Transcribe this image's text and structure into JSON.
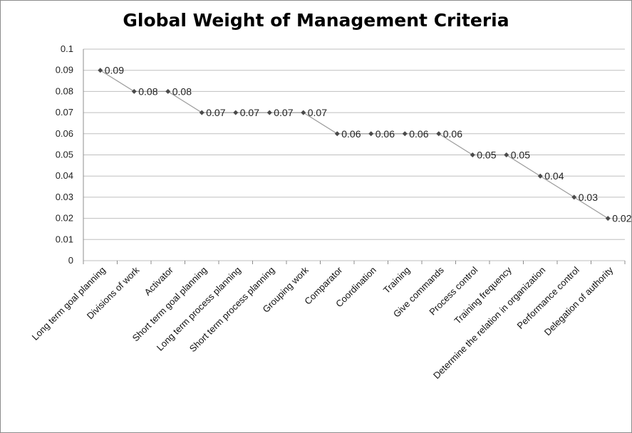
{
  "chart_data": {
    "type": "line",
    "title": "Global Weight of Management Criteria",
    "categories": [
      "Long term goal planning",
      "Divisions of work",
      "Activator",
      "Short term goal planning",
      "Long term process planning",
      "Short term process planning",
      "Grouping work",
      "Comparator",
      "Coordination",
      "Training",
      "Give commands",
      "Process control",
      "Training frequency",
      "Determine the relation in organization",
      "Performance control",
      "Delegation of authority"
    ],
    "values": [
      0.09,
      0.08,
      0.08,
      0.07,
      0.07,
      0.07,
      0.07,
      0.06,
      0.06,
      0.06,
      0.06,
      0.05,
      0.05,
      0.04,
      0.03,
      0.02
    ],
    "data_labels": [
      "0.09",
      "0.08",
      "0.08",
      "0.07",
      "0.07",
      "0.07",
      "0.07",
      "0.06",
      "0.06",
      "0.06",
      "0.06",
      "0.05",
      "0.05",
      "0.04",
      "0.03",
      "0.02"
    ],
    "yticks": [
      "0",
      "0.01",
      "0.02",
      "0.03",
      "0.04",
      "0.05",
      "0.06",
      "0.07",
      "0.08",
      "0.09",
      "0.1"
    ],
    "ylim": [
      0,
      0.1
    ],
    "grid": true,
    "legend": false,
    "line_color": "#9a9a9a",
    "marker_color": "#4a4a4a",
    "grid_color": "#bfbfbf"
  }
}
